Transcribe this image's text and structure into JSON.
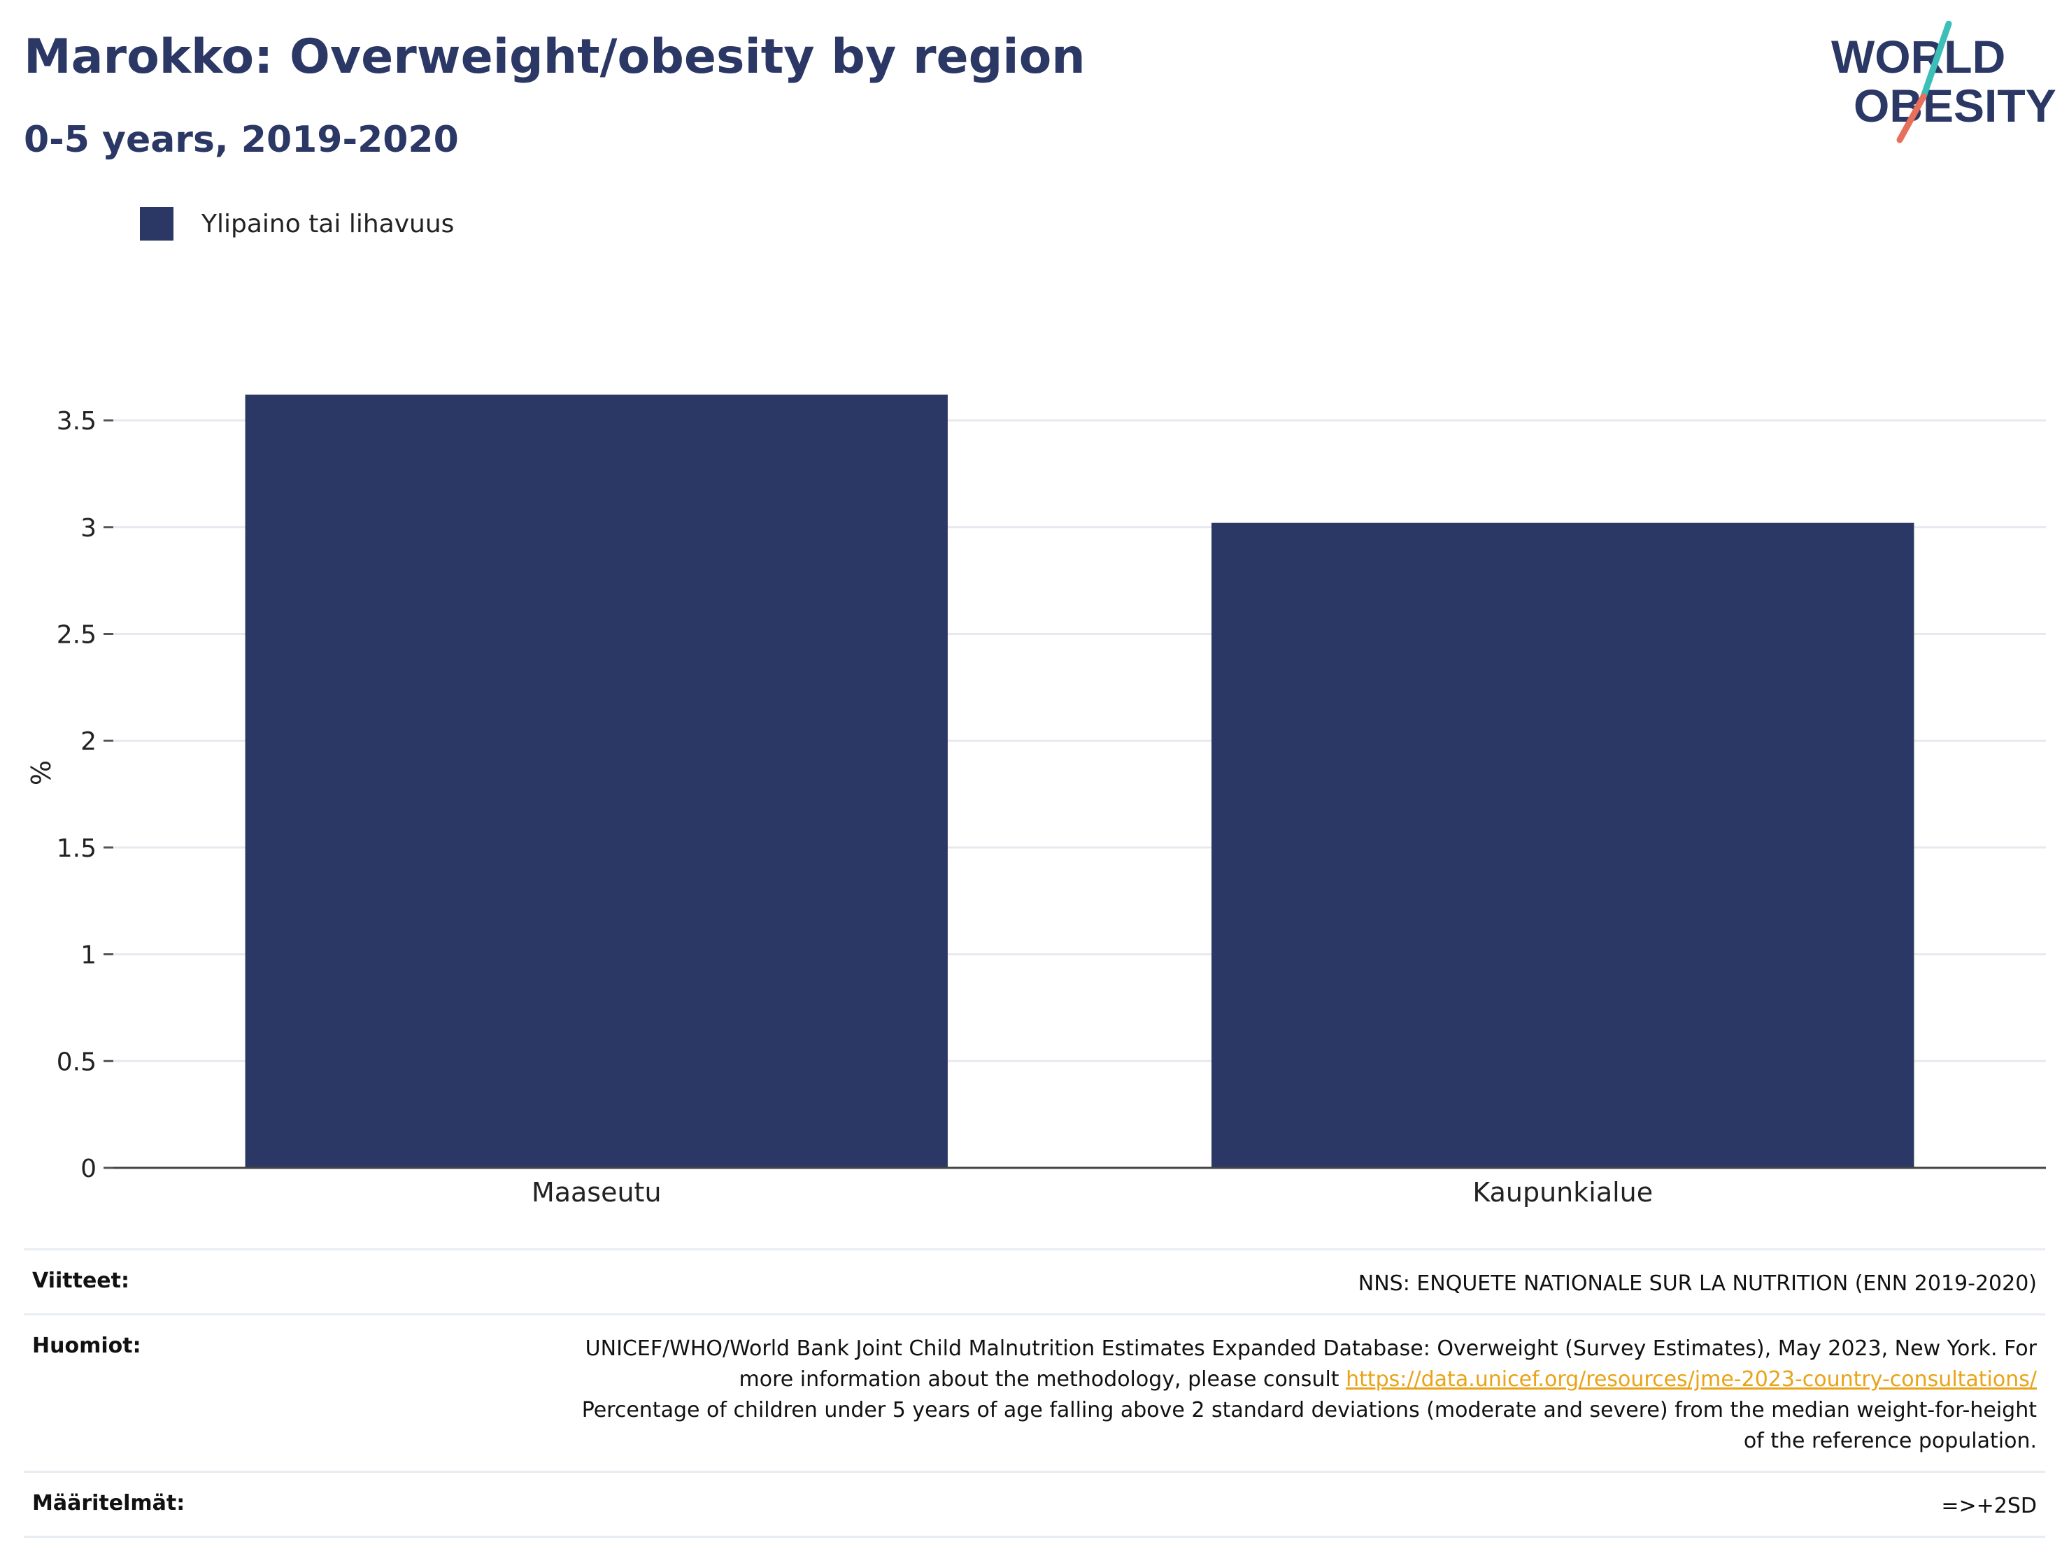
{
  "header": {
    "title": "Marokko: Overweight/obesity by region",
    "subtitle": "0-5 years, 2019-2020"
  },
  "logo": {
    "line1": "WORLD",
    "line2": "OBESITY",
    "colors": {
      "navy": "#2b3764",
      "teal": "#3bbfb6",
      "coral": "#e8705a"
    }
  },
  "chart_data": {
    "type": "bar",
    "categories": [
      "Maaseutu",
      "Kaupunkialue"
    ],
    "series": [
      {
        "name": "Ylipaino tai lihavuus",
        "values": [
          3.62,
          3.02
        ],
        "color": "#2b3764"
      }
    ],
    "ylabel": "%",
    "ylim": [
      0,
      3.7
    ],
    "yticks": [
      0,
      0.5,
      1,
      1.5,
      2,
      2.5,
      3,
      3.5
    ],
    "ytick_labels": [
      "0",
      "0.5",
      "1",
      "1.5",
      "2",
      "2.5",
      "3",
      "3.5"
    ],
    "grid": true,
    "legend_position": "top-left"
  },
  "notes": {
    "references_label": "Viitteet:",
    "references_value": "NNS: ENQUETE NATIONALE SUR LA NUTRITION (ENN 2019-2020)",
    "remarks_label": "Huomiot:",
    "remarks_text_1": "UNICEF/WHO/World Bank Joint Child Malnutrition Estimates Expanded Database: Overweight (Survey Estimates), May 2023, New York. For more information about the methodology, please consult ",
    "remarks_link": "https://data.unicef.org/resources/jme-2023-country-consultations/",
    "remarks_text_2": "Percentage of children under 5 years of age falling above 2 standard deviations (moderate and severe) from the median weight-for-height of the reference population.",
    "definitions_label": "Määritelmät:",
    "definitions_value": "=>+2SD"
  }
}
